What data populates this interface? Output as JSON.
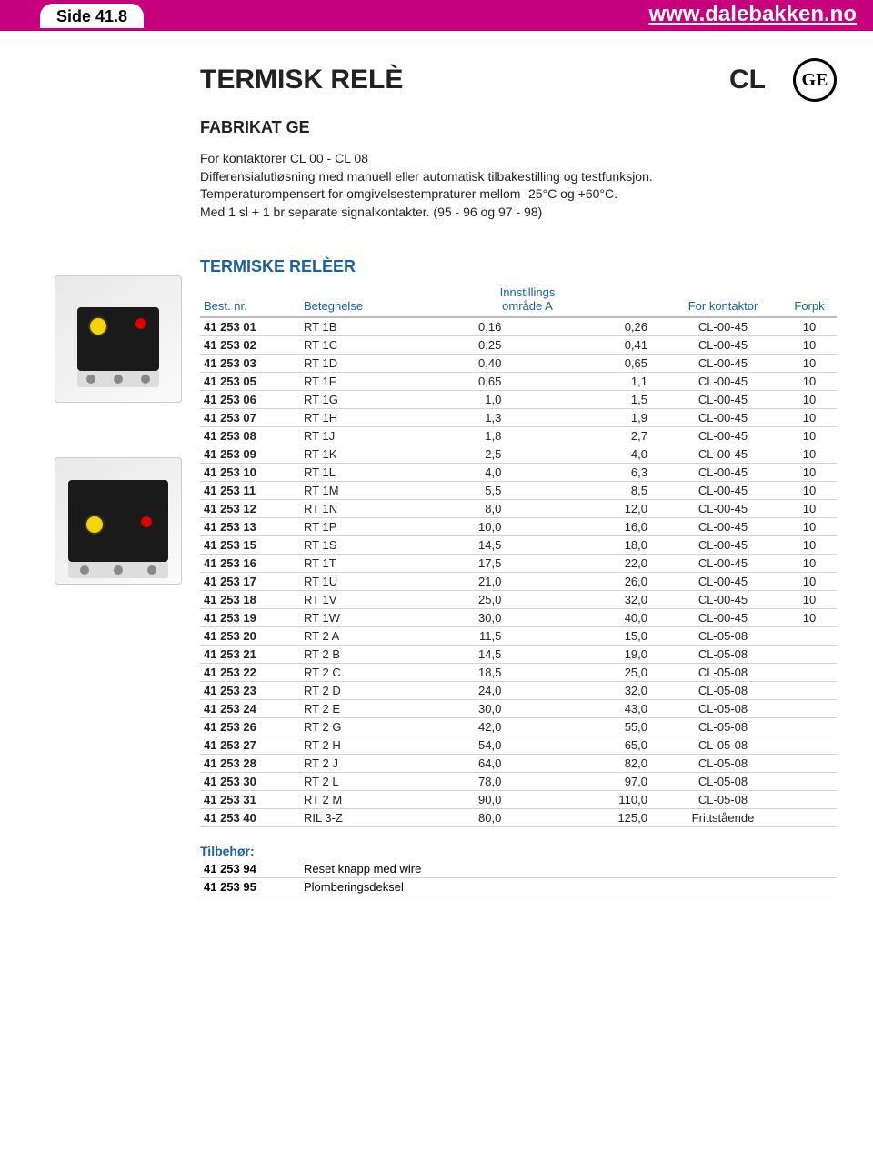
{
  "header": {
    "side_label": "Side 41.8",
    "url": "www.dalebakken.no",
    "topbar_bg": "#c7007d"
  },
  "logo": {
    "text": "GE"
  },
  "page": {
    "title": "TERMISK RELÈ",
    "badge": "CL",
    "subtitle": "FABRIKAT GE",
    "desc_line1": "For kontaktorer CL 00 - CL 08",
    "desc_line2": "Differensialutløsning med manuell eller automatisk tilbakestilling og testfunksjon.",
    "desc_line3": "Temperaturompensert for omgivelsestempraturer mellom -25°C og +60°C.",
    "desc_line4": "Med 1 sl + 1 br separate signalkontakter. (95 - 96 og 97 - 98)"
  },
  "table": {
    "section_title": "TERMISKE RELÈER",
    "headers": {
      "nr": "Best. nr.",
      "bet": "Betegnelse",
      "inn": "Innstillings",
      "inn_sub": "område A",
      "kont": "For kontaktor",
      "forpk": "Forpk"
    },
    "rows": [
      {
        "nr": "41 253 01",
        "bet": "RT 1B",
        "lo": "0,16",
        "hi": "0,26",
        "kont": "CL-00-45",
        "forpk": "10"
      },
      {
        "nr": "41 253 02",
        "bet": "RT 1C",
        "lo": "0,25",
        "hi": "0,41",
        "kont": "CL-00-45",
        "forpk": "10"
      },
      {
        "nr": "41 253 03",
        "bet": "RT 1D",
        "lo": "0,40",
        "hi": "0,65",
        "kont": "CL-00-45",
        "forpk": "10"
      },
      {
        "nr": "41 253 05",
        "bet": "RT 1F",
        "lo": "0,65",
        "hi": "1,1",
        "kont": "CL-00-45",
        "forpk": "10"
      },
      {
        "nr": "41 253 06",
        "bet": "RT 1G",
        "lo": "1,0",
        "hi": "1,5",
        "kont": "CL-00-45",
        "forpk": "10"
      },
      {
        "nr": "41 253 07",
        "bet": "RT 1H",
        "lo": "1,3",
        "hi": "1,9",
        "kont": "CL-00-45",
        "forpk": "10"
      },
      {
        "nr": "41 253 08",
        "bet": "RT 1J",
        "lo": "1,8",
        "hi": "2,7",
        "kont": "CL-00-45",
        "forpk": "10"
      },
      {
        "nr": "41 253 09",
        "bet": "RT 1K",
        "lo": "2,5",
        "hi": "4,0",
        "kont": "CL-00-45",
        "forpk": "10"
      },
      {
        "nr": "41 253 10",
        "bet": "RT 1L",
        "lo": "4,0",
        "hi": "6,3",
        "kont": "CL-00-45",
        "forpk": "10"
      },
      {
        "nr": "41 253 11",
        "bet": "RT 1M",
        "lo": "5,5",
        "hi": "8,5",
        "kont": "CL-00-45",
        "forpk": "10"
      },
      {
        "nr": "41 253 12",
        "bet": "RT 1N",
        "lo": "8,0",
        "hi": "12,0",
        "kont": "CL-00-45",
        "forpk": "10"
      },
      {
        "nr": "41 253 13",
        "bet": "RT 1P",
        "lo": "10,0",
        "hi": "16,0",
        "kont": "CL-00-45",
        "forpk": "10"
      },
      {
        "nr": "41 253 15",
        "bet": "RT 1S",
        "lo": "14,5",
        "hi": "18,0",
        "kont": "CL-00-45",
        "forpk": "10"
      },
      {
        "nr": "41 253 16",
        "bet": "RT 1T",
        "lo": "17,5",
        "hi": "22,0",
        "kont": "CL-00-45",
        "forpk": "10"
      },
      {
        "nr": "41 253 17",
        "bet": "RT 1U",
        "lo": "21,0",
        "hi": "26,0",
        "kont": "CL-00-45",
        "forpk": "10"
      },
      {
        "nr": "41 253 18",
        "bet": "RT 1V",
        "lo": "25,0",
        "hi": "32,0",
        "kont": "CL-00-45",
        "forpk": "10"
      },
      {
        "nr": "41 253 19",
        "bet": "RT 1W",
        "lo": "30,0",
        "hi": "40,0",
        "kont": "CL-00-45",
        "forpk": "10"
      },
      {
        "nr": "41 253 20",
        "bet": "RT 2 A",
        "lo": "11,5",
        "hi": "15,0",
        "kont": "CL-05-08",
        "forpk": ""
      },
      {
        "nr": "41 253 21",
        "bet": "RT 2 B",
        "lo": "14,5",
        "hi": "19,0",
        "kont": "CL-05-08",
        "forpk": ""
      },
      {
        "nr": "41 253 22",
        "bet": "RT 2 C",
        "lo": "18,5",
        "hi": "25,0",
        "kont": "CL-05-08",
        "forpk": ""
      },
      {
        "nr": "41 253 23",
        "bet": "RT 2 D",
        "lo": "24,0",
        "hi": "32,0",
        "kont": "CL-05-08",
        "forpk": ""
      },
      {
        "nr": "41 253 24",
        "bet": "RT 2 E",
        "lo": "30,0",
        "hi": "43,0",
        "kont": "CL-05-08",
        "forpk": ""
      },
      {
        "nr": "41 253 26",
        "bet": "RT 2 G",
        "lo": "42,0",
        "hi": "55,0",
        "kont": "CL-05-08",
        "forpk": ""
      },
      {
        "nr": "41 253 27",
        "bet": "RT 2 H",
        "lo": "54,0",
        "hi": "65,0",
        "kont": "CL-05-08",
        "forpk": ""
      },
      {
        "nr": "41 253 28",
        "bet": "RT 2 J",
        "lo": "64,0",
        "hi": "82,0",
        "kont": "CL-05-08",
        "forpk": ""
      },
      {
        "nr": "41 253 30",
        "bet": "RT 2 L",
        "lo": "78,0",
        "hi": "97,0",
        "kont": "CL-05-08",
        "forpk": ""
      },
      {
        "nr": "41 253 31",
        "bet": "RT 2 M",
        "lo": "90,0",
        "hi": "110,0",
        "kont": "CL-05-08",
        "forpk": ""
      },
      {
        "nr": "41 253 40",
        "bet": "RIL 3-Z",
        "lo": "80,0",
        "hi": "125,0",
        "kont": "Frittstående",
        "forpk": ""
      }
    ]
  },
  "accessories": {
    "title": "Tilbehør:",
    "rows": [
      {
        "nr": "41 253 94",
        "desc": "Reset knapp med wire"
      },
      {
        "nr": "41 253 95",
        "desc": "Plomberingsdeksel"
      }
    ]
  },
  "colors": {
    "accent": "#1b5fa8",
    "border": "#d0d0d0"
  }
}
